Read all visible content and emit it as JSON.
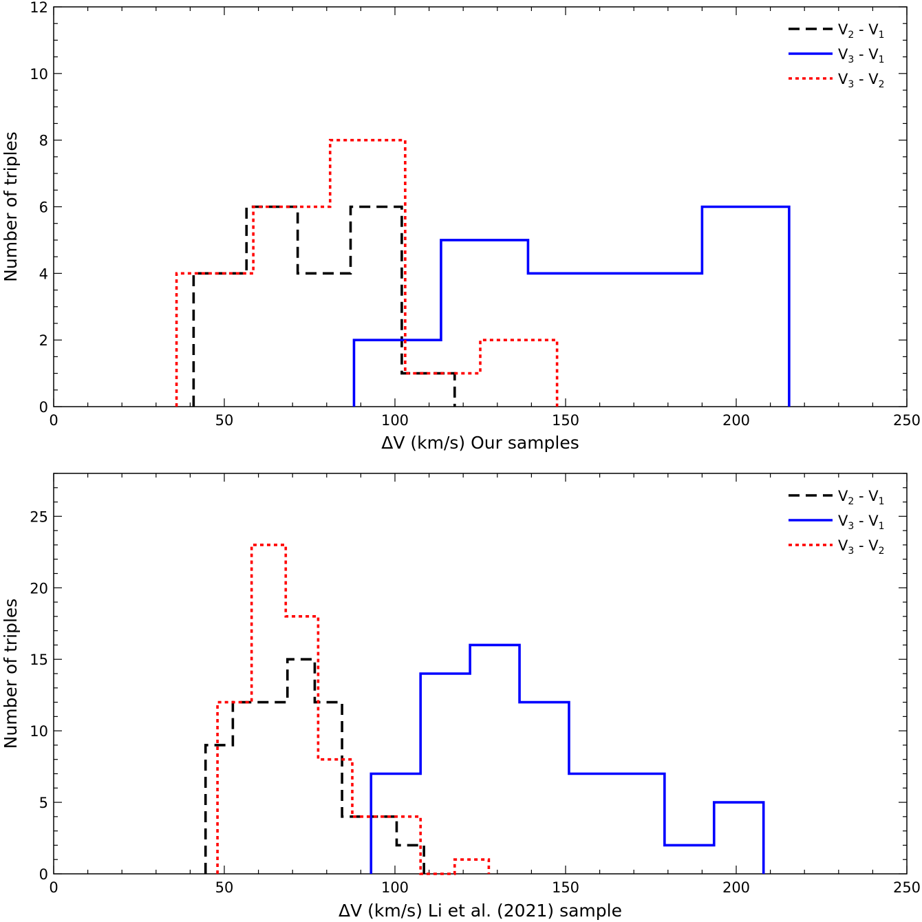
{
  "chart_data": [
    {
      "type": "histogram",
      "title": "",
      "xlabel": "ΔV (km/s) Our samples",
      "ylabel": "Number of triples",
      "xlim": [
        0,
        250
      ],
      "ylim": [
        0,
        12
      ],
      "xticks": [
        0,
        50,
        100,
        150,
        200,
        250
      ],
      "yticks": [
        0,
        2,
        4,
        6,
        8,
        10,
        12
      ],
      "legend_position": "top-right",
      "series": [
        {
          "name": "V2 - V1",
          "label_base": [
            "V",
            " - V"
          ],
          "label_sub": [
            "2",
            "1"
          ],
          "style": "dashed",
          "color": "#000000",
          "edges": [
            41,
            56.5,
            71.5,
            87,
            102,
            117.5
          ],
          "counts": [
            4,
            6,
            4,
            6,
            1
          ]
        },
        {
          "name": "V3 - V1",
          "label_base": [
            "V",
            " - V"
          ],
          "label_sub": [
            "3",
            "1"
          ],
          "style": "solid",
          "color": "#0000ff",
          "edges": [
            88,
            113.5,
            139,
            164.5,
            190,
            215.5
          ],
          "counts": [
            2,
            5,
            4,
            4,
            6
          ]
        },
        {
          "name": "V3 - V2",
          "label_base": [
            "V",
            " - V"
          ],
          "label_sub": [
            "3",
            "2"
          ],
          "style": "dotted",
          "color": "#ff0000",
          "edges": [
            36,
            58.5,
            81,
            103,
            125,
            147.5
          ],
          "counts": [
            4,
            6,
            8,
            1,
            2
          ]
        }
      ]
    },
    {
      "type": "histogram",
      "title": "",
      "xlabel": "ΔV (km/s)  Li et al. (2021) sample",
      "ylabel": "Number of triples",
      "xlim": [
        0,
        250
      ],
      "ylim": [
        0,
        28
      ],
      "xticks": [
        0,
        50,
        100,
        150,
        200,
        250
      ],
      "yticks": [
        0,
        5,
        10,
        15,
        20,
        25
      ],
      "legend_position": "top-right",
      "series": [
        {
          "name": "V2 - V1",
          "label_base": [
            "V",
            " - V"
          ],
          "label_sub": [
            "2",
            "1"
          ],
          "style": "dashed",
          "color": "#000000",
          "edges": [
            44.5,
            52.5,
            60.5,
            68.5,
            76.5,
            84.5,
            92.5,
            100.5,
            108.5
          ],
          "counts": [
            9,
            12,
            12,
            15,
            12,
            4,
            4,
            2
          ]
        },
        {
          "name": "V3 - V1",
          "label_base": [
            "V",
            " - V"
          ],
          "label_sub": [
            "3",
            "1"
          ],
          "style": "solid",
          "color": "#0000ff",
          "edges": [
            93,
            107.5,
            122,
            136.5,
            151,
            165,
            179,
            193.5,
            208
          ],
          "counts": [
            7,
            14,
            16,
            12,
            7,
            7,
            2,
            5
          ]
        },
        {
          "name": "V3 - V2",
          "label_base": [
            "V",
            " - V"
          ],
          "label_sub": [
            "3",
            "2"
          ],
          "style": "dotted",
          "color": "#ff0000",
          "edges": [
            48,
            58,
            68,
            77.5,
            87.5,
            97.5,
            107.5,
            117.5,
            127.5
          ],
          "counts": [
            12,
            23,
            18,
            8,
            4,
            4,
            0,
            1
          ]
        }
      ]
    }
  ]
}
